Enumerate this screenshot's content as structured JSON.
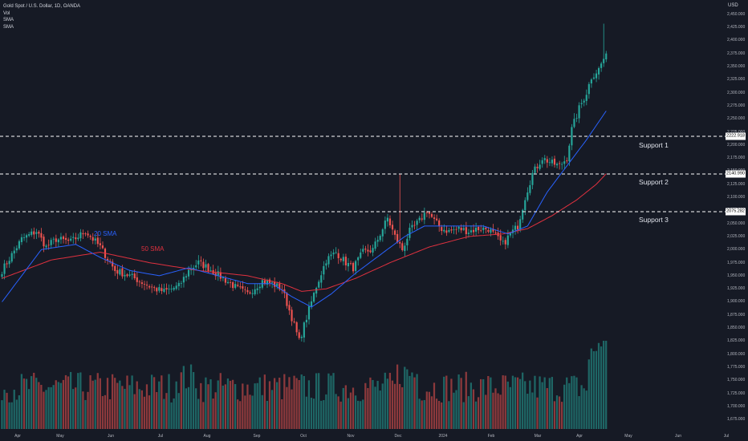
{
  "legend": {
    "title": "Gold Spot / U.S. Dollar, 1D, OANDA",
    "vol": "Vol",
    "sma1": "SMA",
    "sma2": "SMA"
  },
  "currency": "USD",
  "annotations": {
    "sma20": "20 SMA",
    "sma50": "50 SMA",
    "support": [
      {
        "label": "Support 1",
        "price": 2222.918,
        "tag": "2222.918"
      },
      {
        "label": "Support 2",
        "price": 2140.99,
        "tag": "2140.990"
      },
      {
        "label": "Support 3",
        "price": 2075.282,
        "tag": "2075.282"
      }
    ]
  },
  "colors": {
    "background": "#161a25",
    "up": "#26a69a",
    "down": "#ef5350",
    "sma20": "#2962ff",
    "sma50": "#e0313f",
    "support_line": "#ffffff",
    "axis_text": "#b2b5be"
  },
  "chart_data": {
    "type": "candlestick",
    "symbol": "Gold Spot / U.S. Dollar, 1D, OANDA",
    "y_axis": {
      "ticks": [
        "2,450.000",
        "2,425.000",
        "2,400.000",
        "2,375.000",
        "2,350.000",
        "2,325.000",
        "2,300.000",
        "2,275.000",
        "2,250.000",
        "2,225.000",
        "2,200.000",
        "2,175.000",
        "2,150.000",
        "2,125.000",
        "2,100.000",
        "2,075.000",
        "2,050.000",
        "2,025.000",
        "2,000.000",
        "1,975.000",
        "1,950.000",
        "1,925.000",
        "1,900.000",
        "1,875.000",
        "1,850.000",
        "1,825.000",
        "1,800.000",
        "1,775.000",
        "1,750.000",
        "1,725.000",
        "1,700.000",
        "1,675.000"
      ],
      "range": [
        1660,
        2465
      ]
    },
    "x_axis": {
      "ticks": [
        "Apr",
        "May",
        "Jun",
        "Jul",
        "Aug",
        "Sep",
        "Oct",
        "Nov",
        "Dec",
        "2024",
        "Feb",
        "Mar",
        "Apr",
        "May",
        "Jun",
        "Jul"
      ]
    },
    "close_anchors": [
      [
        0,
        1960
      ],
      [
        8,
        2020
      ],
      [
        14,
        2035
      ],
      [
        18,
        2005
      ],
      [
        22,
        2020
      ],
      [
        28,
        2015
      ],
      [
        34,
        2035
      ],
      [
        40,
        2005
      ],
      [
        46,
        1960
      ],
      [
        52,
        1950
      ],
      [
        56,
        1940
      ],
      [
        62,
        1925
      ],
      [
        66,
        1920
      ],
      [
        72,
        1930
      ],
      [
        76,
        1960
      ],
      [
        80,
        1975
      ],
      [
        84,
        1965
      ],
      [
        90,
        1945
      ],
      [
        96,
        1925
      ],
      [
        100,
        1915
      ],
      [
        106,
        1940
      ],
      [
        110,
        1935
      ],
      [
        114,
        1925
      ],
      [
        118,
        1870
      ],
      [
        121,
        1825
      ],
      [
        124,
        1870
      ],
      [
        128,
        1930
      ],
      [
        132,
        1980
      ],
      [
        136,
        1995
      ],
      [
        140,
        1975
      ],
      [
        143,
        1965
      ],
      [
        147,
        1995
      ],
      [
        151,
        2000
      ],
      [
        155,
        2040
      ],
      [
        157,
        2060
      ],
      [
        160,
        2025
      ],
      [
        163,
        2000
      ],
      [
        166,
        2035
      ],
      [
        170,
        2055
      ],
      [
        173,
        2075
      ],
      [
        176,
        2055
      ],
      [
        179,
        2040
      ],
      [
        182,
        2035
      ],
      [
        186,
        2040
      ],
      [
        190,
        2035
      ],
      [
        194,
        2040
      ],
      [
        198,
        2040
      ],
      [
        201,
        2025
      ],
      [
        204,
        2010
      ],
      [
        207,
        2030
      ],
      [
        210,
        2045
      ],
      [
        213,
        2100
      ],
      [
        216,
        2145
      ],
      [
        220,
        2175
      ],
      [
        224,
        2165
      ],
      [
        227,
        2160
      ],
      [
        230,
        2175
      ],
      [
        232,
        2230
      ],
      [
        235,
        2270
      ],
      [
        238,
        2300
      ],
      [
        240,
        2330
      ],
      [
        243,
        2345
      ],
      [
        246,
        2375
      ]
    ],
    "sma20_anchors": [
      [
        0,
        1900
      ],
      [
        16,
        2000
      ],
      [
        30,
        2010
      ],
      [
        40,
        1985
      ],
      [
        52,
        1960
      ],
      [
        64,
        1950
      ],
      [
        76,
        1965
      ],
      [
        88,
        1950
      ],
      [
        100,
        1935
      ],
      [
        110,
        1935
      ],
      [
        118,
        1910
      ],
      [
        126,
        1890
      ],
      [
        134,
        1915
      ],
      [
        144,
        1955
      ],
      [
        154,
        1990
      ],
      [
        164,
        2025
      ],
      [
        172,
        2045
      ],
      [
        182,
        2045
      ],
      [
        196,
        2045
      ],
      [
        206,
        2030
      ],
      [
        214,
        2045
      ],
      [
        222,
        2110
      ],
      [
        230,
        2160
      ],
      [
        238,
        2210
      ],
      [
        246,
        2265
      ]
    ],
    "sma50_anchors": [
      [
        0,
        1945
      ],
      [
        20,
        1980
      ],
      [
        40,
        1995
      ],
      [
        60,
        1975
      ],
      [
        80,
        1960
      ],
      [
        100,
        1950
      ],
      [
        114,
        1935
      ],
      [
        122,
        1920
      ],
      [
        132,
        1925
      ],
      [
        144,
        1945
      ],
      [
        158,
        1975
      ],
      [
        174,
        2005
      ],
      [
        190,
        2025
      ],
      [
        204,
        2030
      ],
      [
        214,
        2040
      ],
      [
        224,
        2065
      ],
      [
        234,
        2095
      ],
      [
        242,
        2125
      ],
      [
        246,
        2145
      ]
    ],
    "volume_range": [
      0,
      100
    ],
    "bar_count": 247,
    "first_bar_label": "Apr",
    "last_price": 2375
  }
}
